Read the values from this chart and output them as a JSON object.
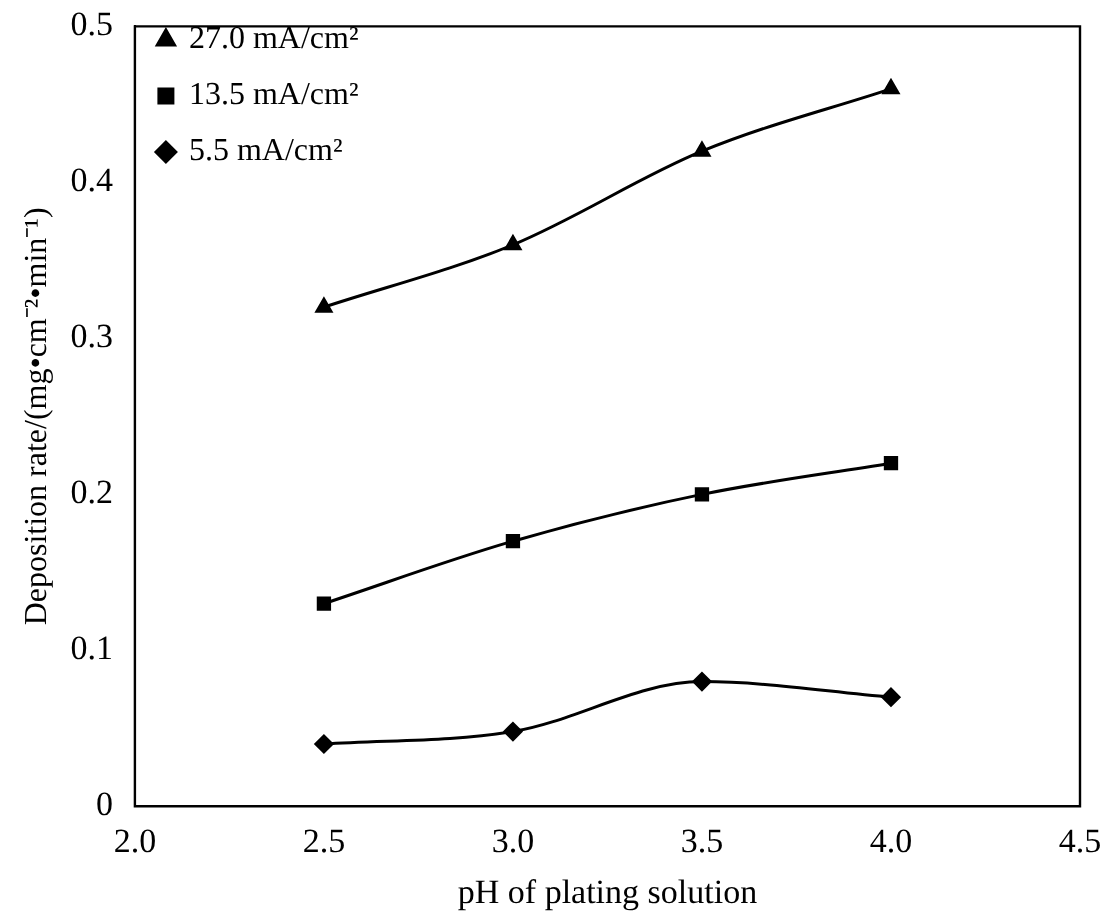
{
  "chart_data": {
    "type": "line",
    "xlabel": "pH of plating solution",
    "ylabel": "Deposition rate/(mg•cm⁻²•min⁻¹)",
    "x": [
      2.5,
      3.0,
      3.5,
      4.0
    ],
    "series": [
      {
        "name": "27.0 mA/cm²",
        "color": "#000000",
        "marker": "triangle",
        "values": [
          0.32,
          0.36,
          0.42,
          0.46
        ]
      },
      {
        "name": "13.5 mA/cm²",
        "color": "#000000",
        "marker": "square",
        "values": [
          0.13,
          0.17,
          0.2,
          0.22
        ]
      },
      {
        "name": "5.5 mA/cm²",
        "color": "#000000",
        "marker": "diamond",
        "values": [
          0.04,
          0.048,
          0.08,
          0.07
        ]
      }
    ],
    "xlim": [
      2.0,
      4.5
    ],
    "xticks": [
      {
        "value": 2.0,
        "label": "2.0"
      },
      {
        "value": 2.5,
        "label": "2.5"
      },
      {
        "value": 3.0,
        "label": "3.0"
      },
      {
        "value": 3.5,
        "label": "3.5"
      },
      {
        "value": 4.0,
        "label": "4.0"
      },
      {
        "value": 4.5,
        "label": "4.5"
      }
    ],
    "ylim": [
      0,
      0.5
    ],
    "yticks": [
      0,
      0.1,
      0.2,
      0.3,
      0.4,
      0.5
    ],
    "grid": false,
    "legend": "top left",
    "line_style": "solid"
  }
}
